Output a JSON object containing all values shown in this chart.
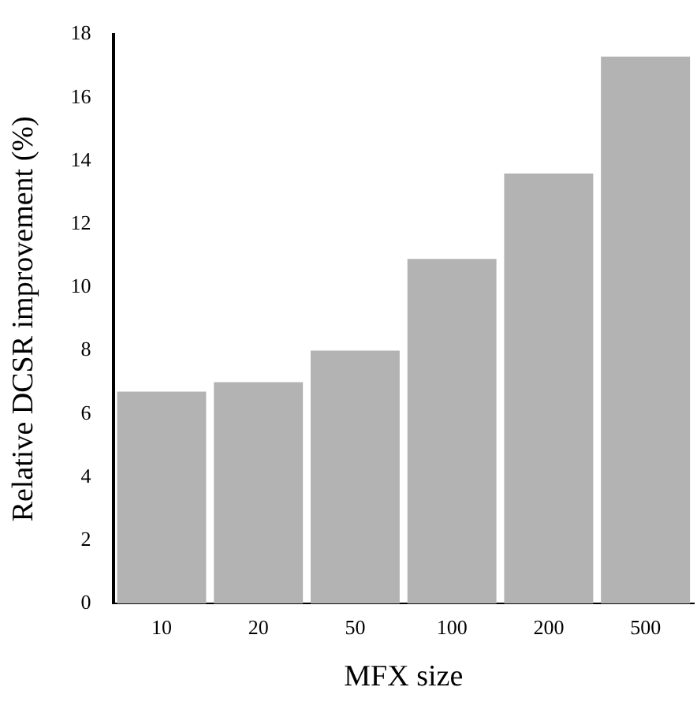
{
  "chart_data": {
    "type": "bar",
    "xlabel": "MFX size",
    "ylabel": "Relative DCSR improvement (%)",
    "categories": [
      "10",
      "20",
      "50",
      "100",
      "200",
      "500"
    ],
    "values": [
      6.7,
      7.0,
      8.0,
      10.9,
      13.6,
      17.3
    ],
    "color": "#b3b3b3",
    "ylim": [
      0,
      18
    ],
    "yticks": [
      0,
      2,
      4,
      6,
      8,
      10,
      12,
      14,
      16,
      18
    ],
    "grid": false
  }
}
